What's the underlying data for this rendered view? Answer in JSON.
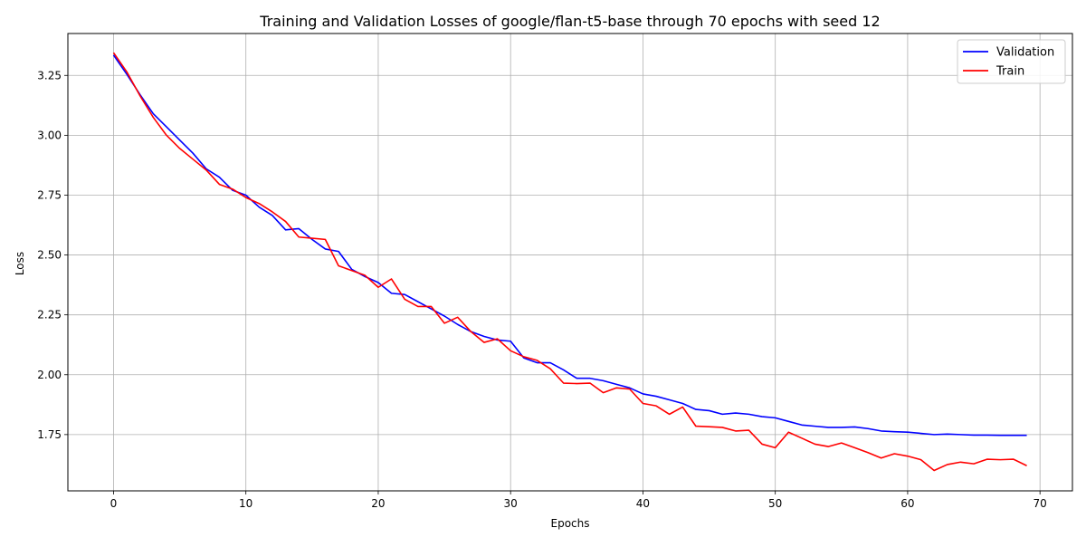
{
  "chart_data": {
    "type": "line",
    "title": "Training and Validation Losses of google/flan-t5-base through 70 epochs with seed 12",
    "xlabel": "Epochs",
    "ylabel": "Loss",
    "xlim": [
      -3.45,
      72.45
    ],
    "ylim": [
      1.515,
      3.425
    ],
    "xticks": [
      0,
      10,
      20,
      30,
      40,
      50,
      60,
      70
    ],
    "yticks": [
      1.75,
      2.0,
      2.25,
      2.5,
      2.75,
      3.0,
      3.25
    ],
    "ytick_labels": [
      "1.75",
      "2.00",
      "2.25",
      "2.50",
      "2.75",
      "3.00",
      "3.25"
    ],
    "grid": true,
    "legend_position": "top-right",
    "series": [
      {
        "name": "Validation",
        "color": "#0000ff",
        "values": [
          3.335,
          3.255,
          3.17,
          3.09,
          3.035,
          2.98,
          2.925,
          2.86,
          2.825,
          2.77,
          2.75,
          2.7,
          2.665,
          2.605,
          2.61,
          2.565,
          2.525,
          2.515,
          2.44,
          2.41,
          2.385,
          2.34,
          2.335,
          2.305,
          2.275,
          2.245,
          2.21,
          2.18,
          2.16,
          2.145,
          2.14,
          2.07,
          2.05,
          2.05,
          2.02,
          1.985,
          1.985,
          1.975,
          1.96,
          1.945,
          1.92,
          1.91,
          1.895,
          1.88,
          1.855,
          1.85,
          1.835,
          1.84,
          1.835,
          1.825,
          1.82,
          1.805,
          1.79,
          1.785,
          1.78,
          1.78,
          1.782,
          1.775,
          1.765,
          1.762,
          1.76,
          1.755,
          1.75,
          1.752,
          1.75,
          1.748,
          1.748,
          1.747,
          1.747,
          1.747
        ]
      },
      {
        "name": "Train",
        "color": "#ff0000",
        "values": [
          3.345,
          3.265,
          3.165,
          3.075,
          3.0,
          2.945,
          2.9,
          2.855,
          2.795,
          2.775,
          2.74,
          2.715,
          2.68,
          2.64,
          2.575,
          2.57,
          2.565,
          2.455,
          2.435,
          2.415,
          2.365,
          2.4,
          2.315,
          2.285,
          2.285,
          2.215,
          2.24,
          2.18,
          2.135,
          2.15,
          2.1,
          2.075,
          2.06,
          2.025,
          1.965,
          1.963,
          1.965,
          1.925,
          1.945,
          1.94,
          1.88,
          1.87,
          1.835,
          1.865,
          1.785,
          1.783,
          1.78,
          1.765,
          1.768,
          1.71,
          1.695,
          1.76,
          1.735,
          1.71,
          1.7,
          1.715,
          1.695,
          1.675,
          1.652,
          1.67,
          1.66,
          1.645,
          1.6,
          1.625,
          1.635,
          1.628,
          1.647,
          1.645,
          1.647,
          1.62
        ]
      }
    ]
  }
}
